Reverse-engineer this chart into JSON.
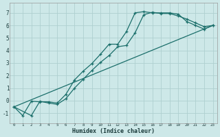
{
  "background_color": "#cde8e8",
  "grid_color": "#aed0d0",
  "line_color": "#1a6e6a",
  "marker": "+",
  "xlabel": "Humidex (Indice chaleur)",
  "ylim": [
    -1.8,
    7.8
  ],
  "xlim": [
    -0.5,
    23.5
  ],
  "yticks": [
    -1,
    0,
    1,
    2,
    3,
    4,
    5,
    6,
    7
  ],
  "xticks": [
    0,
    1,
    2,
    3,
    4,
    5,
    6,
    7,
    8,
    9,
    10,
    11,
    12,
    13,
    14,
    15,
    16,
    17,
    18,
    19,
    20,
    21,
    22,
    23
  ],
  "curve1_x": [
    0,
    1,
    2,
    3,
    4,
    5,
    6,
    7,
    8,
    9,
    10,
    11,
    12,
    13,
    14,
    15,
    16,
    17,
    18,
    19,
    20,
    21,
    22,
    23
  ],
  "curve1_y": [
    -0.5,
    -1.2,
    -0.05,
    -0.1,
    -0.1,
    -0.2,
    0.5,
    1.65,
    2.35,
    2.95,
    3.7,
    4.5,
    4.5,
    5.5,
    7.0,
    7.1,
    7.0,
    7.0,
    7.0,
    6.9,
    6.3,
    6.0,
    5.7,
    6.0
  ],
  "curve2_x": [
    0,
    2,
    3,
    4,
    5,
    6,
    7,
    8,
    9,
    10,
    11,
    12,
    13,
    14,
    15,
    16,
    17,
    18,
    19,
    20,
    21,
    22,
    23
  ],
  "curve2_y": [
    -0.5,
    -1.2,
    -0.05,
    -0.2,
    -0.3,
    0.15,
    1.0,
    1.7,
    2.4,
    3.05,
    3.6,
    4.3,
    4.4,
    5.4,
    6.85,
    7.05,
    6.95,
    6.95,
    6.75,
    6.5,
    6.2,
    5.9,
    6.0
  ],
  "curve3_x": [
    0,
    23
  ],
  "curve3_y": [
    -0.5,
    6.0
  ]
}
